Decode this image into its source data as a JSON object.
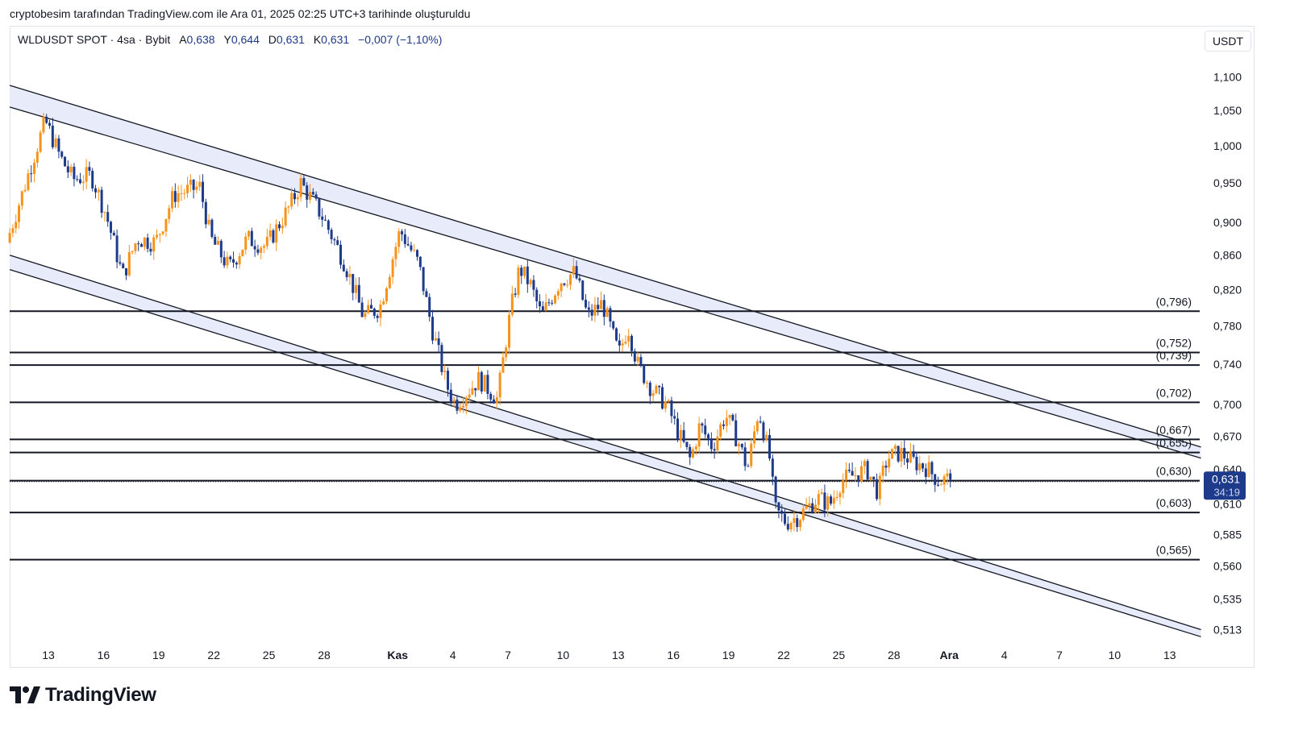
{
  "header": {
    "note": "cryptobesim tarafından TradingView.com ile Ara 01, 2025 02:25 UTC+3 tarihinde oluşturuldu"
  },
  "legend": {
    "symbol": "WLDUSDT SPOT · 4sa · Bybit",
    "open_label": "A",
    "open_value": "0,638",
    "high_label": "Y",
    "high_value": "0,644",
    "low_label": "D",
    "low_value": "0,631",
    "close_label": "K",
    "close_value": "0,631",
    "change": "−0,007 (−1,10%)"
  },
  "currency": "USDT",
  "brand": {
    "name": "TradingView"
  },
  "colors": {
    "up": "#f7931a",
    "down": "#1e3a8a",
    "line": "#131722",
    "channel_fill": "#e8ecfa",
    "price_tag": "#1e3a8a",
    "grid": "#f0f3fa"
  },
  "price_tag": {
    "price": "0,631",
    "countdown": "34:19"
  },
  "chart_data": {
    "type": "candlestick",
    "symbol": "WLDUSDT",
    "interval": "4sa",
    "yaxis_ticks": [
      {
        "v": 1.1,
        "label": "1,100"
      },
      {
        "v": 1.05,
        "label": "1,050"
      },
      {
        "v": 1.0,
        "label": "1,000"
      },
      {
        "v": 0.95,
        "label": "0,950"
      },
      {
        "v": 0.9,
        "label": "0,900"
      },
      {
        "v": 0.86,
        "label": "0,860"
      },
      {
        "v": 0.82,
        "label": "0,820"
      },
      {
        "v": 0.78,
        "label": "0,780"
      },
      {
        "v": 0.74,
        "label": "0,740"
      },
      {
        "v": 0.7,
        "label": "0,700"
      },
      {
        "v": 0.67,
        "label": "0,670"
      },
      {
        "v": 0.64,
        "label": "0,640"
      },
      {
        "v": 0.61,
        "label": "0,610"
      },
      {
        "v": 0.585,
        "label": "0,585"
      },
      {
        "v": 0.56,
        "label": "0,560"
      },
      {
        "v": 0.535,
        "label": "0,535"
      },
      {
        "v": 0.513,
        "label": "0,513"
      }
    ],
    "xaxis_ticks": [
      {
        "d": 0,
        "label": "13",
        "bold": false
      },
      {
        "d": 3,
        "label": "16",
        "bold": false
      },
      {
        "d": 6,
        "label": "19",
        "bold": false
      },
      {
        "d": 9,
        "label": "22",
        "bold": false
      },
      {
        "d": 12,
        "label": "25",
        "bold": false
      },
      {
        "d": 15,
        "label": "28",
        "bold": false
      },
      {
        "d": 19,
        "label": "Kas",
        "bold": true
      },
      {
        "d": 22,
        "label": "4",
        "bold": false
      },
      {
        "d": 25,
        "label": "7",
        "bold": false
      },
      {
        "d": 28,
        "label": "10",
        "bold": false
      },
      {
        "d": 31,
        "label": "13",
        "bold": false
      },
      {
        "d": 34,
        "label": "16",
        "bold": false
      },
      {
        "d": 37,
        "label": "19",
        "bold": false
      },
      {
        "d": 40,
        "label": "22",
        "bold": false
      },
      {
        "d": 43,
        "label": "25",
        "bold": false
      },
      {
        "d": 46,
        "label": "28",
        "bold": false
      },
      {
        "d": 49,
        "label": "Ara",
        "bold": true
      },
      {
        "d": 52,
        "label": "4",
        "bold": false
      },
      {
        "d": 55,
        "label": "7",
        "bold": false
      },
      {
        "d": 58,
        "label": "10",
        "bold": false
      },
      {
        "d": 61,
        "label": "13",
        "bold": false
      }
    ],
    "horizontal_levels": [
      {
        "v": 0.796,
        "label": "(0,796)"
      },
      {
        "v": 0.752,
        "label": "(0,752)"
      },
      {
        "v": 0.739,
        "label": "(0,739)"
      },
      {
        "v": 0.702,
        "label": "(0,702)"
      },
      {
        "v": 0.667,
        "label": "(0,667)"
      },
      {
        "v": 0.655,
        "label": "(0,655)"
      },
      {
        "v": 0.63,
        "label": "(0,630)"
      },
      {
        "v": 0.603,
        "label": "(0,603)"
      },
      {
        "v": 0.565,
        "label": "(0,565)"
      }
    ],
    "current_price": 0.631,
    "channels": [
      {
        "name": "upper",
        "d_start": -2.1,
        "d_end": 62.7,
        "top": [
          1.087,
          0.66
        ],
        "bottom": [
          1.055,
          0.65
        ]
      },
      {
        "name": "lower",
        "d_start": -2.1,
        "d_end": 62.7,
        "top": [
          0.86,
          0.513
        ],
        "bottom": [
          0.843,
          0.508
        ]
      }
    ],
    "anchors": [
      [
        -2.1,
        0.875
      ],
      [
        -1.2,
        0.94
      ],
      [
        0.0,
        1.035
      ],
      [
        0.8,
        0.985
      ],
      [
        1.5,
        0.955
      ],
      [
        2.5,
        0.96
      ],
      [
        3.3,
        0.91
      ],
      [
        4.2,
        0.835
      ],
      [
        5.0,
        0.88
      ],
      [
        6.0,
        0.875
      ],
      [
        7.0,
        0.935
      ],
      [
        8.4,
        0.945
      ],
      [
        9.0,
        0.88
      ],
      [
        10.0,
        0.845
      ],
      [
        11.0,
        0.88
      ],
      [
        12.0,
        0.87
      ],
      [
        13.3,
        0.92
      ],
      [
        13.9,
        0.95
      ],
      [
        15.0,
        0.91
      ],
      [
        16.3,
        0.85
      ],
      [
        17.3,
        0.79
      ],
      [
        18.2,
        0.8
      ],
      [
        19.3,
        0.89
      ],
      [
        20.3,
        0.85
      ],
      [
        21.0,
        0.78
      ],
      [
        21.8,
        0.72
      ],
      [
        22.3,
        0.7
      ],
      [
        23.6,
        0.725
      ],
      [
        24.6,
        0.705
      ],
      [
        25.3,
        0.795
      ],
      [
        25.8,
        0.845
      ],
      [
        26.4,
        0.825
      ],
      [
        27.0,
        0.79
      ],
      [
        28.0,
        0.83
      ],
      [
        28.8,
        0.84
      ],
      [
        29.5,
        0.79
      ],
      [
        30.3,
        0.805
      ],
      [
        31.2,
        0.75
      ],
      [
        31.7,
        0.78
      ],
      [
        32.2,
        0.74
      ],
      [
        33.0,
        0.715
      ],
      [
        33.8,
        0.7
      ],
      [
        34.5,
        0.67
      ],
      [
        35.1,
        0.648
      ],
      [
        35.6,
        0.68
      ],
      [
        36.3,
        0.66
      ],
      [
        37.0,
        0.69
      ],
      [
        37.7,
        0.665
      ],
      [
        38.2,
        0.64
      ],
      [
        38.8,
        0.695
      ],
      [
        39.4,
        0.65
      ],
      [
        39.7,
        0.605
      ],
      [
        40.3,
        0.595
      ],
      [
        41.0,
        0.6
      ],
      [
        42.0,
        0.615
      ],
      [
        42.7,
        0.61
      ],
      [
        43.3,
        0.63
      ],
      [
        44.0,
        0.635
      ],
      [
        44.7,
        0.64
      ],
      [
        45.3,
        0.62
      ],
      [
        45.8,
        0.65
      ],
      [
        46.5,
        0.655
      ],
      [
        47.2,
        0.647
      ],
      [
        47.9,
        0.642
      ],
      [
        48.6,
        0.63
      ],
      [
        49.1,
        0.631
      ]
    ]
  }
}
